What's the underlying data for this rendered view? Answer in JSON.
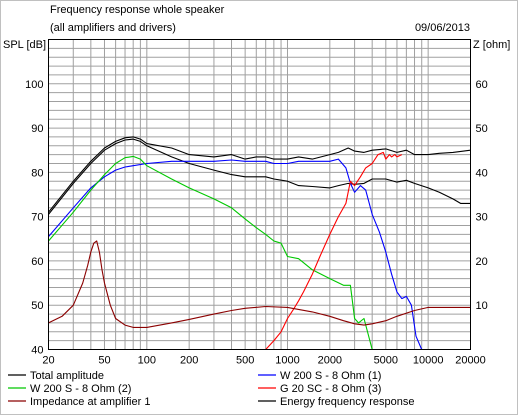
{
  "header": {
    "title": "Frequency response whole speaker",
    "subtitle": "(all amplifiers and drivers)",
    "date": "09/06/2013"
  },
  "chart_data": {
    "type": "line",
    "xscale": "log",
    "xlim": [
      20,
      20000
    ],
    "ylim": [
      40,
      110
    ],
    "y2lim": [
      0,
      70
    ],
    "ylabel": "SPL [dB]",
    "y2label": "Z [ohm]",
    "grid": true,
    "legend_position": "bottom",
    "x_ticks": [
      {
        "value": 20,
        "label": "20"
      },
      {
        "value": 50,
        "label": "50"
      },
      {
        "value": 100,
        "label": "100"
      },
      {
        "value": 200,
        "label": "200"
      },
      {
        "value": 500,
        "label": "500"
      },
      {
        "value": 1000,
        "label": "1000"
      },
      {
        "value": 2000,
        "label": "2000"
      },
      {
        "value": 5000,
        "label": "5000"
      },
      {
        "value": 10000,
        "label": "10000"
      },
      {
        "value": 20000,
        "label": "20000"
      }
    ],
    "y_ticks": [
      {
        "value": 40,
        "label": "40"
      },
      {
        "value": 50,
        "label": "50"
      },
      {
        "value": 60,
        "label": "60"
      },
      {
        "value": 70,
        "label": "70"
      },
      {
        "value": 80,
        "label": "80"
      },
      {
        "value": 90,
        "label": "90"
      },
      {
        "value": 100,
        "label": "100"
      }
    ],
    "y2_ticks": [
      {
        "value": 10,
        "label": "10"
      },
      {
        "value": 20,
        "label": "20"
      },
      {
        "value": 30,
        "label": "30"
      },
      {
        "value": 40,
        "label": "40"
      },
      {
        "value": 50,
        "label": "50"
      },
      {
        "value": 60,
        "label": "60"
      }
    ],
    "series": [
      {
        "name": "Total amplitude",
        "color": "#000000",
        "axis": "left",
        "x": [
          20,
          30,
          40,
          50,
          60,
          70,
          80,
          90,
          100,
          150,
          200,
          300,
          400,
          500,
          600,
          700,
          800,
          1000,
          1200,
          1500,
          2000,
          2300,
          2700,
          3000,
          3500,
          4000,
          5000,
          6000,
          7000,
          8000,
          10000,
          12000,
          15000,
          20000
        ],
        "y": [
          71,
          78,
          82.5,
          85.5,
          87,
          87.8,
          88,
          87.5,
          86.5,
          85.5,
          84,
          83.5,
          84,
          83,
          83.5,
          83.5,
          83,
          83,
          83.5,
          83,
          84,
          84.5,
          85.5,
          84.8,
          84.5,
          85,
          85.3,
          84.5,
          85,
          84,
          84,
          84.3,
          84.5,
          85
        ]
      },
      {
        "name": "Energy frequency response",
        "color": "#000000",
        "axis": "left",
        "x": [
          20,
          30,
          40,
          50,
          60,
          70,
          80,
          90,
          100,
          150,
          200,
          300,
          400,
          500,
          600,
          700,
          800,
          1000,
          1200,
          1500,
          2000,
          2300,
          2700,
          3000,
          3500,
          4000,
          5000,
          6000,
          7000,
          8000,
          10000,
          12000,
          15000,
          17000,
          20000
        ],
        "y": [
          70.5,
          77.5,
          82,
          85,
          86.5,
          87.3,
          87.5,
          87,
          86,
          83.5,
          82,
          80.5,
          79.5,
          79,
          79,
          79,
          78.5,
          78,
          77,
          76.8,
          76.5,
          77,
          77.5,
          77.3,
          77.5,
          78.5,
          78.5,
          77.8,
          78.2,
          77.5,
          76.5,
          75.5,
          74,
          73,
          73
        ]
      },
      {
        "name": "W 200 S - 8 Ohm (1)",
        "color": "#0000ff",
        "axis": "left",
        "x": [
          20,
          30,
          40,
          50,
          60,
          70,
          80,
          100,
          150,
          200,
          300,
          400,
          500,
          600,
          700,
          800,
          1000,
          1200,
          1500,
          2000,
          2300,
          2600,
          2800,
          3000,
          3300,
          3600,
          4000,
          4500,
          5000,
          5500,
          6000,
          6500,
          7000,
          7600,
          8200,
          9000
        ],
        "y": [
          65.5,
          72,
          76.5,
          79,
          80.5,
          81.2,
          81.5,
          82,
          82.5,
          82.5,
          82.5,
          82.8,
          82.5,
          82.5,
          82.5,
          82,
          82,
          82.5,
          82.5,
          82.5,
          83,
          81,
          77.5,
          75.5,
          77,
          76,
          70.5,
          66.5,
          62,
          57,
          53,
          51.5,
          52,
          50,
          43,
          40
        ]
      },
      {
        "name": "W 200 S - 8 Ohm (2)",
        "color": "#00c800",
        "axis": "left",
        "x": [
          20,
          30,
          40,
          50,
          60,
          70,
          80,
          90,
          100,
          150,
          200,
          300,
          400,
          500,
          600,
          700,
          800,
          900,
          1000,
          1200,
          1500,
          2000,
          2500,
          2800,
          3000,
          3200,
          3500,
          4000,
          4500
        ],
        "y": [
          64.5,
          71,
          76,
          79.5,
          82,
          83.3,
          83.6,
          83,
          81.5,
          78.5,
          76.5,
          74,
          72,
          69.5,
          67.5,
          66,
          64.5,
          64,
          61,
          60.5,
          58,
          56,
          54.5,
          54.5,
          47,
          46,
          47,
          40,
          40
        ]
      },
      {
        "name": "G 20 SC - 8 Ohm (3)",
        "color": "#ff0000",
        "axis": "left",
        "x": [
          700,
          800,
          900,
          1000,
          1100,
          1200,
          1300,
          1500,
          1700,
          2000,
          2300,
          2600,
          2800,
          3000,
          3300,
          3600,
          4000,
          4400,
          4800,
          5000,
          5300,
          5500,
          5800,
          6000,
          6500
        ],
        "y": [
          40,
          42,
          44,
          47,
          49,
          51,
          53,
          57,
          61,
          66,
          70,
          73,
          78,
          77,
          79,
          81,
          82,
          84,
          84.5,
          83,
          84,
          83.5,
          84,
          83.5,
          84
        ]
      },
      {
        "name": "Impedance at amplifier 1",
        "color": "#8b0000",
        "axis": "right",
        "x": [
          20,
          25,
          30,
          35,
          38,
          40,
          42,
          44,
          46,
          48,
          50,
          55,
          60,
          70,
          80,
          100,
          150,
          200,
          300,
          400,
          500,
          700,
          1000,
          1500,
          2000,
          2500,
          3000,
          3500,
          4000,
          5000,
          6000,
          8000,
          10000,
          15000,
          20000
        ],
        "y": [
          6,
          7.5,
          10,
          15,
          19,
          22,
          24,
          24.5,
          22,
          18,
          15,
          10,
          7,
          5.5,
          5,
          5,
          6,
          6.8,
          8,
          8.8,
          9.3,
          9.7,
          9.5,
          8.5,
          7.5,
          6.5,
          5.8,
          5.5,
          5.8,
          6.5,
          7.5,
          8.8,
          9.5,
          9.5,
          9.5
        ]
      }
    ]
  },
  "legend": [
    {
      "label": "Total amplitude",
      "color": "#000000"
    },
    {
      "label": "W 200 S - 8 Ohm (1)",
      "color": "#0000ff"
    },
    {
      "label": "W 200 S - 8 Ohm (2)",
      "color": "#00c800"
    },
    {
      "label": "G 20 SC - 8 Ohm (3)",
      "color": "#ff0000"
    },
    {
      "label": "Impedance at amplifier 1",
      "color": "#8b0000"
    },
    {
      "label": "Energy frequency response",
      "color": "#000000"
    }
  ]
}
